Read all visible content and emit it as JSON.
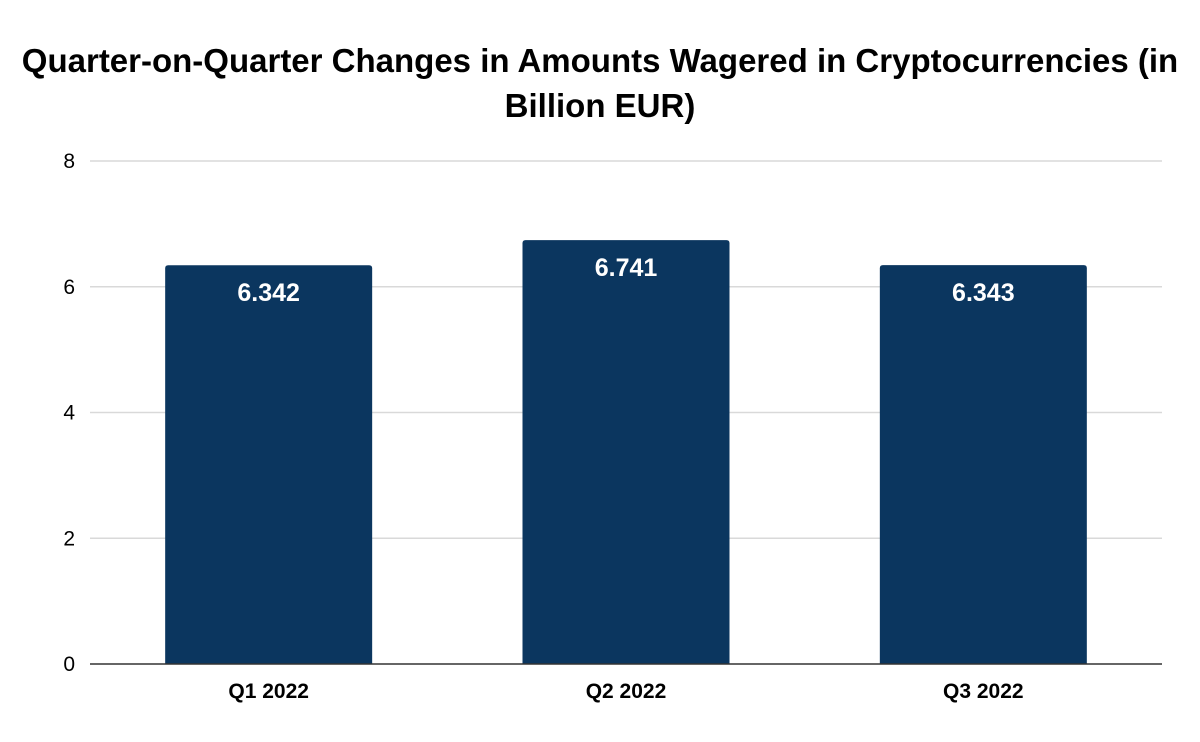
{
  "chart_data": {
    "type": "bar",
    "title": "Quarter-on-Quarter Changes in Amounts Wagered in Cryptocurrencies (in Billion EUR)",
    "xlabel": "",
    "ylabel": "",
    "categories": [
      "Q1 2022",
      "Q2 2022",
      "Q3 2022"
    ],
    "values": [
      6.342,
      6.741,
      6.343
    ],
    "data_labels": [
      "6.342",
      "6.741",
      "6.343"
    ],
    "yticks": [
      0,
      2,
      4,
      6,
      8
    ],
    "ylim": [
      0,
      8
    ],
    "grid": true,
    "legend": "none",
    "colors": {
      "bar": "#0b365f",
      "grid": "#d9d9d9",
      "axis": "#333333"
    }
  }
}
